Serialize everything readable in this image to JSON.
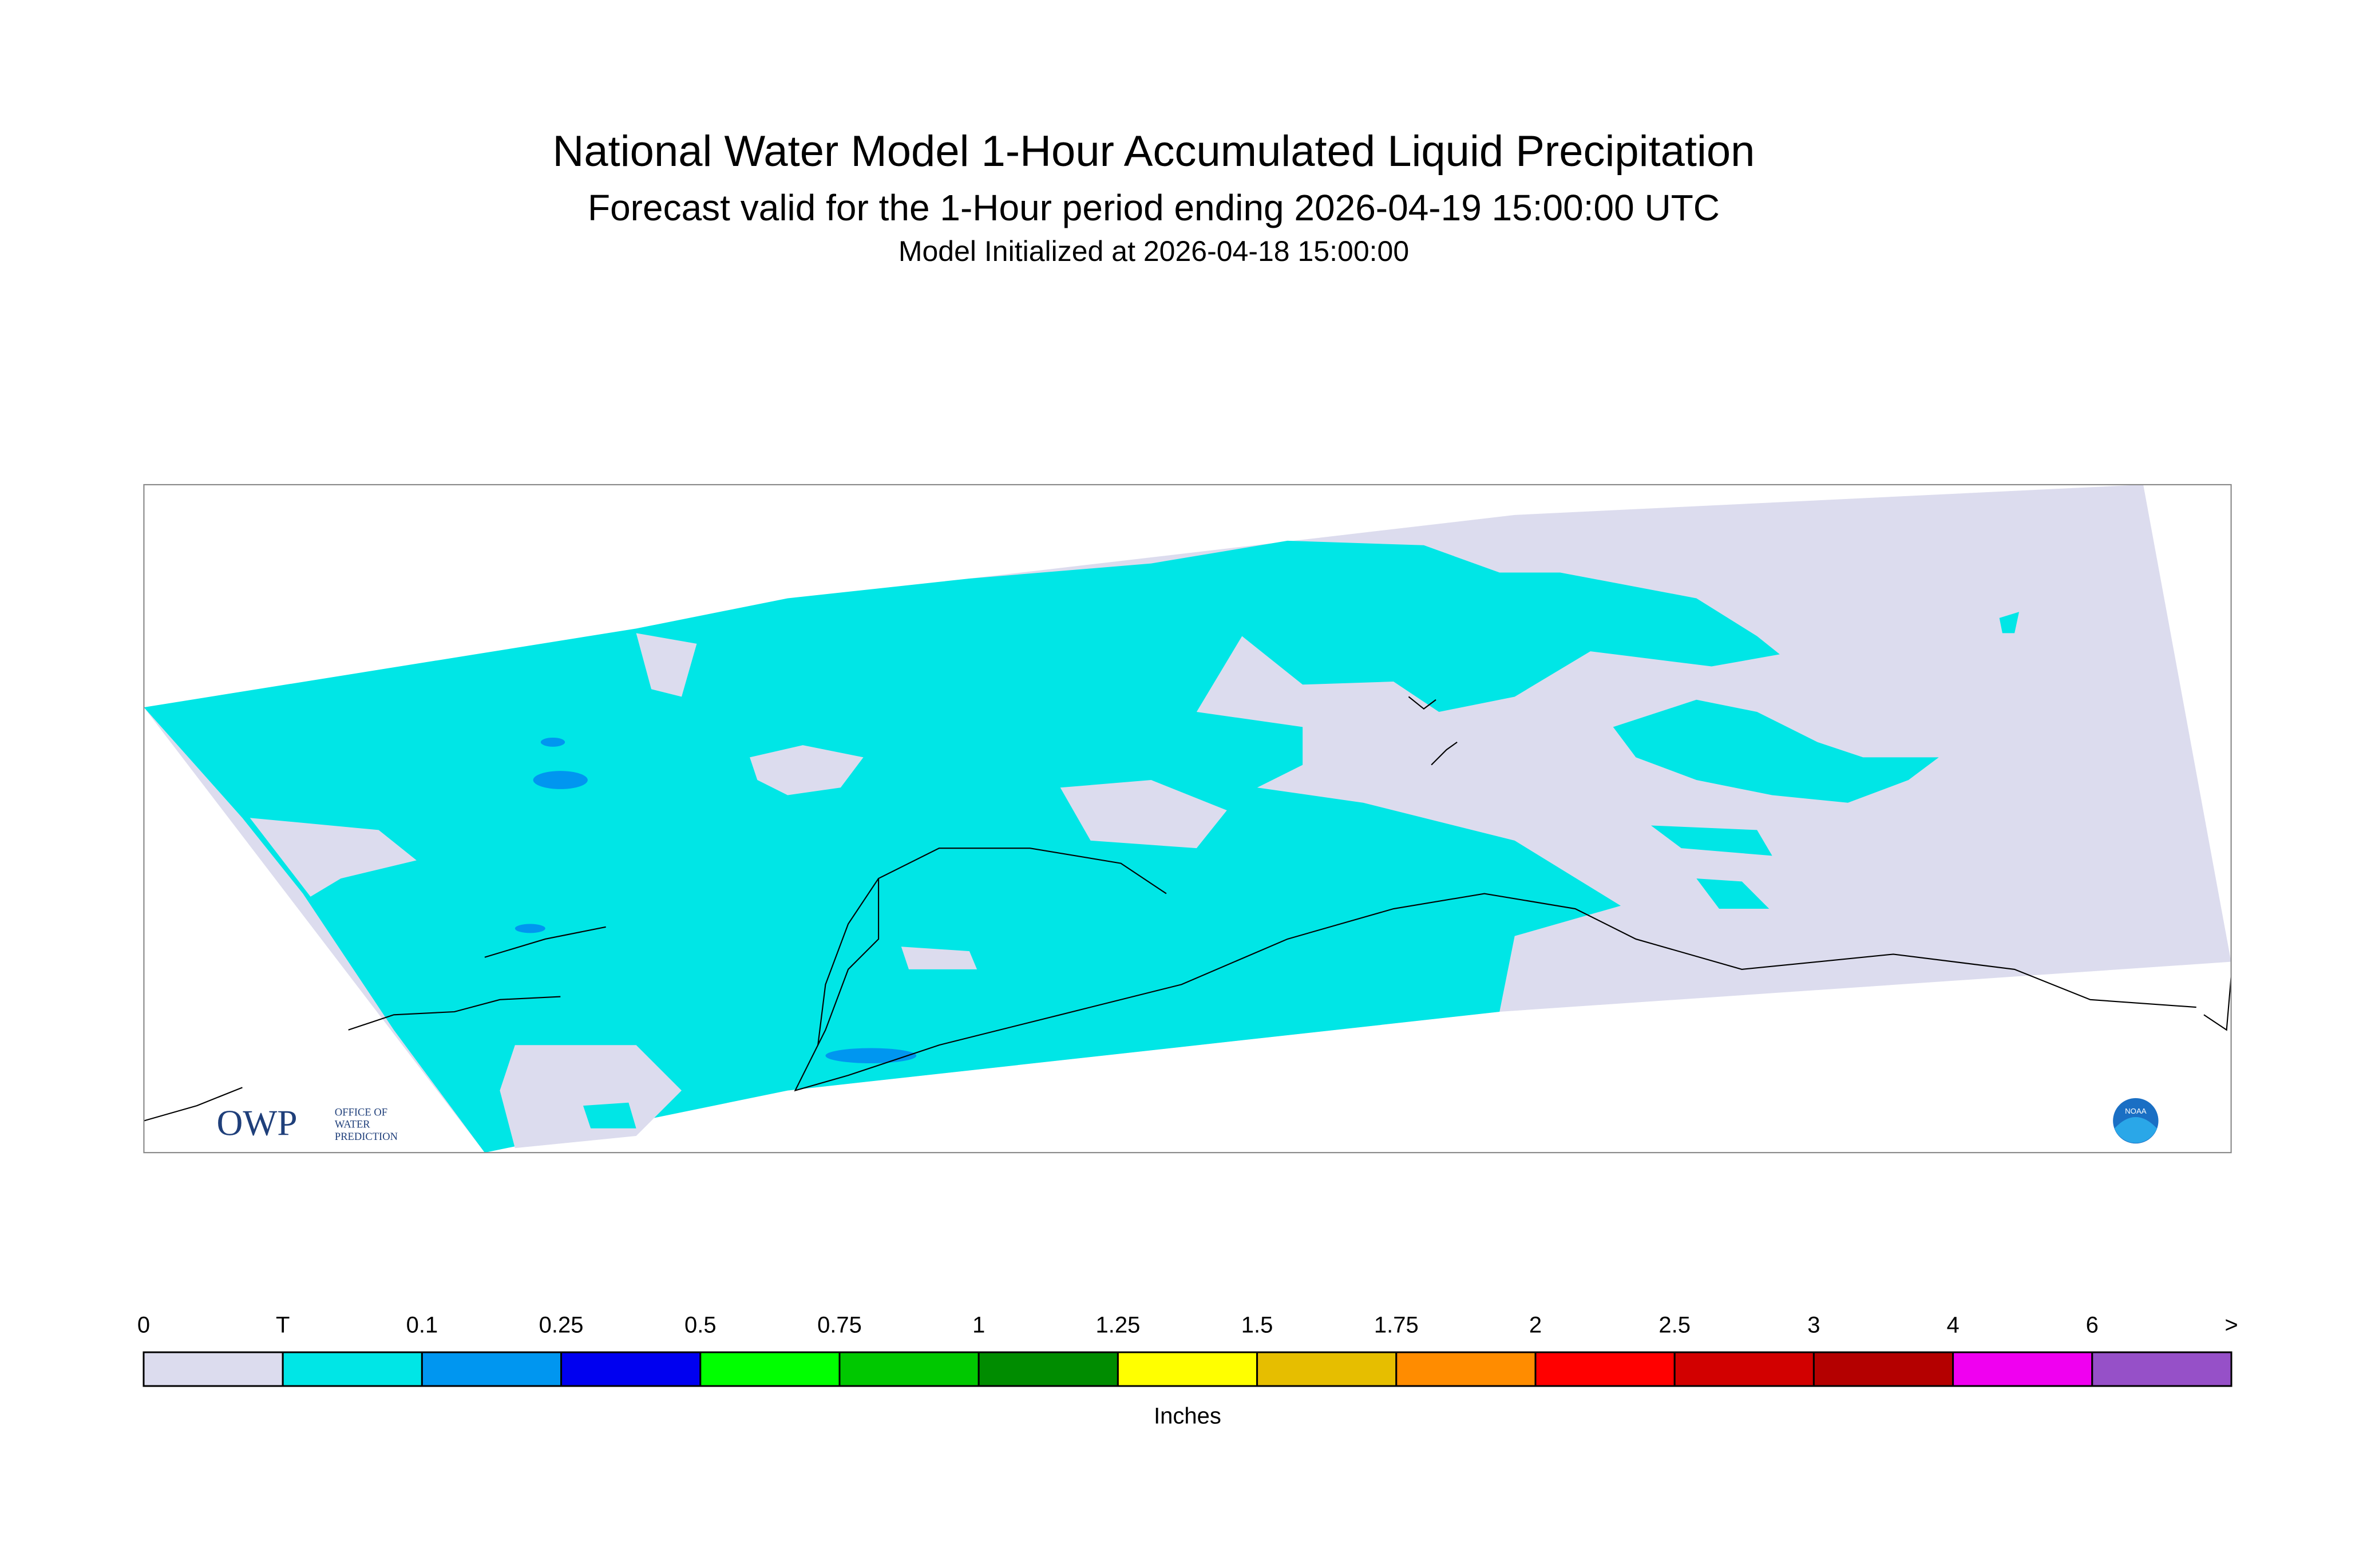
{
  "header": {
    "title": "National Water Model 1-Hour Accumulated Liquid Precipitation",
    "subtitle": "Forecast valid for the 1-Hour period ending 2026-04-19 15:00:00 UTC",
    "init": "Model Initialized at 2026-04-18 15:00:00"
  },
  "logo": {
    "owp": "OWP",
    "lines": [
      "OFFICE OF",
      "WATER",
      "PREDICTION"
    ],
    "noaa": "NOAA"
  },
  "legend": {
    "labels": [
      "0",
      "T",
      "0.1",
      "0.25",
      "0.5",
      "0.75",
      "1",
      "1.25",
      "1.5",
      "1.75",
      "2",
      "2.5",
      "3",
      "4",
      "6",
      ">"
    ],
    "colors": [
      "#dcdcee",
      "#00e6e6",
      "#0096f0",
      "#0000f0",
      "#00ff00",
      "#00c800",
      "#008c00",
      "#ffff00",
      "#e6be00",
      "#ff8c00",
      "#ff0000",
      "#d20000",
      "#b40000",
      "#f000f0",
      "#9650c8"
    ],
    "unit": "Inches"
  }
}
